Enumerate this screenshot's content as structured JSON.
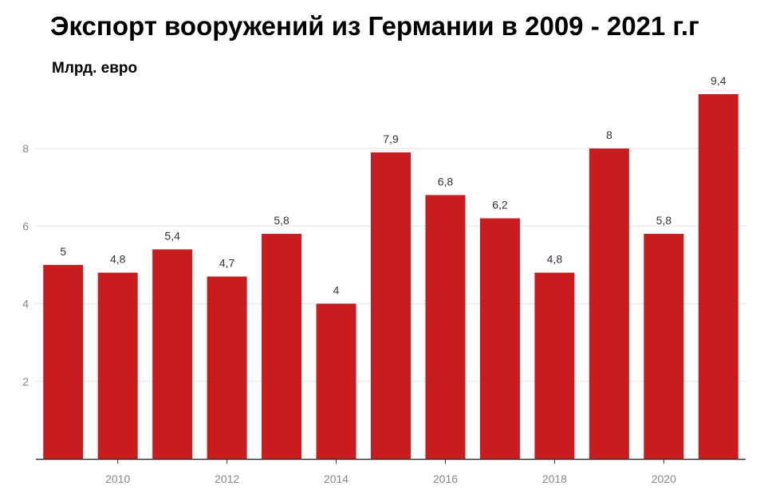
{
  "chart_data": {
    "type": "bar",
    "title": "Экспорт вооружений из Германии в 2009 - 2021 г.г",
    "ylabel": "Млрд. евро",
    "xlabel": "",
    "x": [
      2009,
      2010,
      2011,
      2012,
      2013,
      2014,
      2015,
      2016,
      2017,
      2018,
      2019,
      2020,
      2021
    ],
    "values": [
      5,
      4.8,
      5.4,
      4.7,
      5.8,
      4,
      7.9,
      6.8,
      6.2,
      4.8,
      8,
      5.8,
      9.4
    ],
    "data_labels": [
      "5",
      "4,8",
      "5,4",
      "4,7",
      "5,8",
      "4",
      "7,9",
      "6,8",
      "6,2",
      "4,8",
      "8",
      "5,8",
      "9,4"
    ],
    "x_ticks": [
      "2010",
      "2012",
      "2014",
      "2016",
      "2018",
      "2020"
    ],
    "y_ticks": [
      "2",
      "4",
      "6",
      "8"
    ],
    "ylim": [
      0,
      9.4
    ],
    "grid": true,
    "legend": "none",
    "colors": {
      "bar": "#c81c1e",
      "grid": "#e6e6e6",
      "axis": "#333333"
    }
  }
}
